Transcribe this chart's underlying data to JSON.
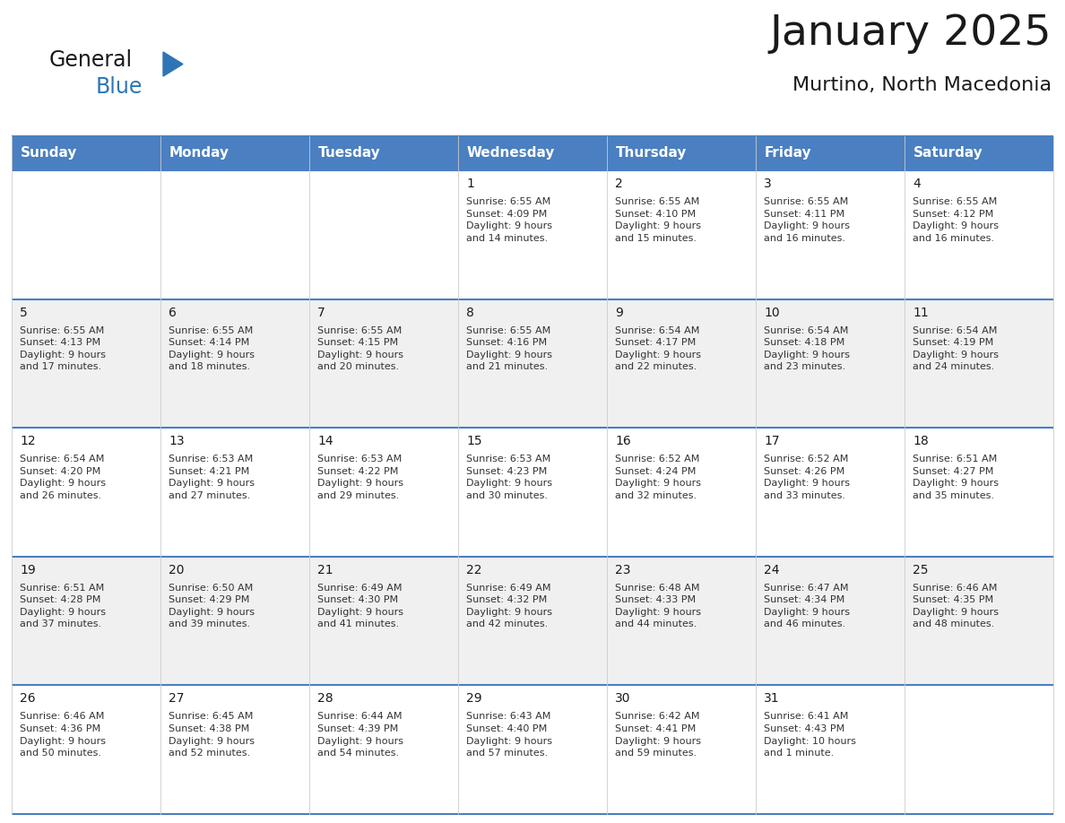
{
  "title": "January 2025",
  "subtitle": "Murtino, North Macedonia",
  "header_color": "#4a7fc1",
  "header_text_color": "#FFFFFF",
  "day_names": [
    "Sunday",
    "Monday",
    "Tuesday",
    "Wednesday",
    "Thursday",
    "Friday",
    "Saturday"
  ],
  "bg_color": "#FFFFFF",
  "cell_bg_even": "#f0f0f0",
  "cell_bg_odd": "#FFFFFF",
  "border_color": "#4a7fc1",
  "text_color": "#333333",
  "days": [
    {
      "day": 1,
      "col": 3,
      "row": 1,
      "sunrise": "6:55 AM",
      "sunset": "4:09 PM",
      "daylight": "9 hours and 14 minutes."
    },
    {
      "day": 2,
      "col": 4,
      "row": 1,
      "sunrise": "6:55 AM",
      "sunset": "4:10 PM",
      "daylight": "9 hours and 15 minutes."
    },
    {
      "day": 3,
      "col": 5,
      "row": 1,
      "sunrise": "6:55 AM",
      "sunset": "4:11 PM",
      "daylight": "9 hours and 16 minutes."
    },
    {
      "day": 4,
      "col": 6,
      "row": 1,
      "sunrise": "6:55 AM",
      "sunset": "4:12 PM",
      "daylight": "9 hours and 16 minutes."
    },
    {
      "day": 5,
      "col": 0,
      "row": 2,
      "sunrise": "6:55 AM",
      "sunset": "4:13 PM",
      "daylight": "9 hours and 17 minutes."
    },
    {
      "day": 6,
      "col": 1,
      "row": 2,
      "sunrise": "6:55 AM",
      "sunset": "4:14 PM",
      "daylight": "9 hours and 18 minutes."
    },
    {
      "day": 7,
      "col": 2,
      "row": 2,
      "sunrise": "6:55 AM",
      "sunset": "4:15 PM",
      "daylight": "9 hours and 20 minutes."
    },
    {
      "day": 8,
      "col": 3,
      "row": 2,
      "sunrise": "6:55 AM",
      "sunset": "4:16 PM",
      "daylight": "9 hours and 21 minutes."
    },
    {
      "day": 9,
      "col": 4,
      "row": 2,
      "sunrise": "6:54 AM",
      "sunset": "4:17 PM",
      "daylight": "9 hours and 22 minutes."
    },
    {
      "day": 10,
      "col": 5,
      "row": 2,
      "sunrise": "6:54 AM",
      "sunset": "4:18 PM",
      "daylight": "9 hours and 23 minutes."
    },
    {
      "day": 11,
      "col": 6,
      "row": 2,
      "sunrise": "6:54 AM",
      "sunset": "4:19 PM",
      "daylight": "9 hours and 24 minutes."
    },
    {
      "day": 12,
      "col": 0,
      "row": 3,
      "sunrise": "6:54 AM",
      "sunset": "4:20 PM",
      "daylight": "9 hours and 26 minutes."
    },
    {
      "day": 13,
      "col": 1,
      "row": 3,
      "sunrise": "6:53 AM",
      "sunset": "4:21 PM",
      "daylight": "9 hours and 27 minutes."
    },
    {
      "day": 14,
      "col": 2,
      "row": 3,
      "sunrise": "6:53 AM",
      "sunset": "4:22 PM",
      "daylight": "9 hours and 29 minutes."
    },
    {
      "day": 15,
      "col": 3,
      "row": 3,
      "sunrise": "6:53 AM",
      "sunset": "4:23 PM",
      "daylight": "9 hours and 30 minutes."
    },
    {
      "day": 16,
      "col": 4,
      "row": 3,
      "sunrise": "6:52 AM",
      "sunset": "4:24 PM",
      "daylight": "9 hours and 32 minutes."
    },
    {
      "day": 17,
      "col": 5,
      "row": 3,
      "sunrise": "6:52 AM",
      "sunset": "4:26 PM",
      "daylight": "9 hours and 33 minutes."
    },
    {
      "day": 18,
      "col": 6,
      "row": 3,
      "sunrise": "6:51 AM",
      "sunset": "4:27 PM",
      "daylight": "9 hours and 35 minutes."
    },
    {
      "day": 19,
      "col": 0,
      "row": 4,
      "sunrise": "6:51 AM",
      "sunset": "4:28 PM",
      "daylight": "9 hours and 37 minutes."
    },
    {
      "day": 20,
      "col": 1,
      "row": 4,
      "sunrise": "6:50 AM",
      "sunset": "4:29 PM",
      "daylight": "9 hours and 39 minutes."
    },
    {
      "day": 21,
      "col": 2,
      "row": 4,
      "sunrise": "6:49 AM",
      "sunset": "4:30 PM",
      "daylight": "9 hours and 41 minutes."
    },
    {
      "day": 22,
      "col": 3,
      "row": 4,
      "sunrise": "6:49 AM",
      "sunset": "4:32 PM",
      "daylight": "9 hours and 42 minutes."
    },
    {
      "day": 23,
      "col": 4,
      "row": 4,
      "sunrise": "6:48 AM",
      "sunset": "4:33 PM",
      "daylight": "9 hours and 44 minutes."
    },
    {
      "day": 24,
      "col": 5,
      "row": 4,
      "sunrise": "6:47 AM",
      "sunset": "4:34 PM",
      "daylight": "9 hours and 46 minutes."
    },
    {
      "day": 25,
      "col": 6,
      "row": 4,
      "sunrise": "6:46 AM",
      "sunset": "4:35 PM",
      "daylight": "9 hours and 48 minutes."
    },
    {
      "day": 26,
      "col": 0,
      "row": 5,
      "sunrise": "6:46 AM",
      "sunset": "4:36 PM",
      "daylight": "9 hours and 50 minutes."
    },
    {
      "day": 27,
      "col": 1,
      "row": 5,
      "sunrise": "6:45 AM",
      "sunset": "4:38 PM",
      "daylight": "9 hours and 52 minutes."
    },
    {
      "day": 28,
      "col": 2,
      "row": 5,
      "sunrise": "6:44 AM",
      "sunset": "4:39 PM",
      "daylight": "9 hours and 54 minutes."
    },
    {
      "day": 29,
      "col": 3,
      "row": 5,
      "sunrise": "6:43 AM",
      "sunset": "4:40 PM",
      "daylight": "9 hours and 57 minutes."
    },
    {
      "day": 30,
      "col": 4,
      "row": 5,
      "sunrise": "6:42 AM",
      "sunset": "4:41 PM",
      "daylight": "9 hours and 59 minutes."
    },
    {
      "day": 31,
      "col": 5,
      "row": 5,
      "sunrise": "6:41 AM",
      "sunset": "4:43 PM",
      "daylight": "10 hours and 1 minute."
    }
  ],
  "logo_general_fontsize": 17,
  "logo_blue_fontsize": 17,
  "title_fontsize": 34,
  "subtitle_fontsize": 16,
  "header_fontsize": 11,
  "daynum_fontsize": 10,
  "cell_text_fontsize": 8
}
